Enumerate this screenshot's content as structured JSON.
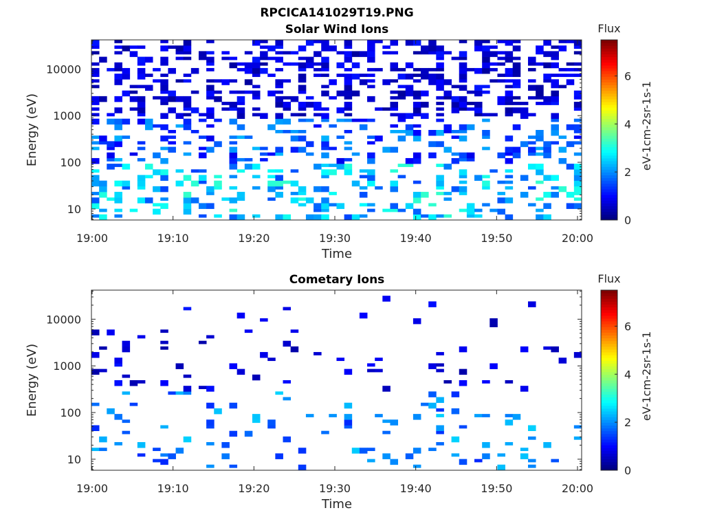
{
  "figure_title": "RPCICA141029T19.PNG",
  "colors": {
    "colormap": "jet",
    "axis": "#262626",
    "background": "#ffffff"
  },
  "chart_data": [
    {
      "type": "heatmap",
      "title": "Solar Wind Ions",
      "xlabel": "Time",
      "ylabel": "Energy (eV)",
      "x_ticks": [
        "19:00",
        "19:10",
        "19:20",
        "19:30",
        "19:40",
        "19:50",
        "20:00"
      ],
      "y_ticks": [
        "10",
        "100",
        "1000",
        "10000"
      ],
      "y_scale": "log",
      "ylim": [
        5.8,
        42000
      ],
      "xlim": [
        "19:00",
        "20:00"
      ],
      "colorbar": {
        "title": "Flux",
        "label": "eV-1cm-2sr-1s-1",
        "ticks": [
          "0",
          "2",
          "4",
          "6"
        ],
        "range": [
          0,
          7.5
        ]
      },
      "time_bins": 64,
      "energy_bins": 32,
      "density_seed": 11,
      "density_profile": "dense"
    },
    {
      "type": "heatmap",
      "title": "Cometary Ions",
      "xlabel": "Time",
      "ylabel": "Energy (eV)",
      "x_ticks": [
        "19:00",
        "19:10",
        "19:20",
        "19:30",
        "19:40",
        "19:50",
        "20:00"
      ],
      "y_ticks": [
        "10",
        "100",
        "1000",
        "10000"
      ],
      "y_scale": "log",
      "ylim": [
        5.8,
        42000
      ],
      "xlim": [
        "19:00",
        "20:00"
      ],
      "colorbar": {
        "title": "Flux",
        "label": "eV-1cm-2sr-1s-1",
        "ticks": [
          "0",
          "2",
          "4",
          "6"
        ],
        "range": [
          0,
          7.5
        ]
      },
      "time_bins": 64,
      "energy_bins": 32,
      "density_seed": 29,
      "density_profile": "sparse"
    }
  ]
}
